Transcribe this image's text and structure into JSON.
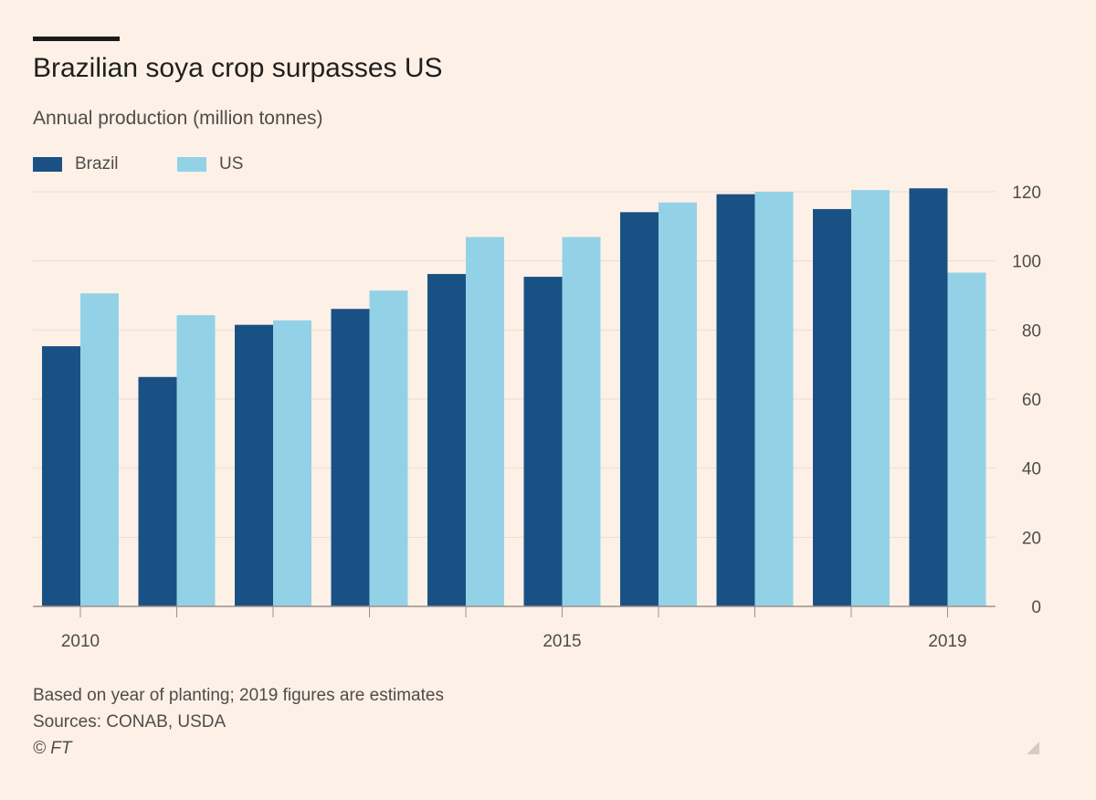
{
  "header": {
    "title": "Brazilian soya crop surpasses US",
    "subtitle": "Annual production (million tonnes)"
  },
  "legend": {
    "items": [
      {
        "label": "Brazil",
        "color": "#1A5185"
      },
      {
        "label": "US",
        "color": "#93D2E6"
      }
    ]
  },
  "footer": {
    "note": "Based on year of planting; 2019 figures are estimates",
    "sources": "Sources: CONAB, USDA",
    "credit": "© FT"
  },
  "colors": {
    "background": "#FDF1E7",
    "gridline": "#EBDCD0",
    "axis": "#9a928b"
  },
  "chart_data": {
    "type": "bar",
    "categories": [
      "2010",
      "2011",
      "2012",
      "2013",
      "2014",
      "2015",
      "2016",
      "2017",
      "2018",
      "2019"
    ],
    "x_tick_labels": [
      "2010",
      "2015",
      "2019"
    ],
    "series": [
      {
        "name": "Brazil",
        "color": "#1A5185",
        "values": [
          75.3,
          66.4,
          81.5,
          86.1,
          96.2,
          95.4,
          114.1,
          119.3,
          115.0,
          121.0
        ]
      },
      {
        "name": "US",
        "color": "#93D2E6",
        "values": [
          90.6,
          84.3,
          82.8,
          91.4,
          106.9,
          106.9,
          116.9,
          120.0,
          120.5,
          96.6
        ]
      }
    ],
    "ylim": [
      0,
      120
    ],
    "yticks": [
      0,
      20,
      40,
      60,
      80,
      100,
      120
    ],
    "y_axis_position": "right",
    "grid": true,
    "legend_position": "top-left",
    "xlabel": "",
    "ylabel": ""
  }
}
